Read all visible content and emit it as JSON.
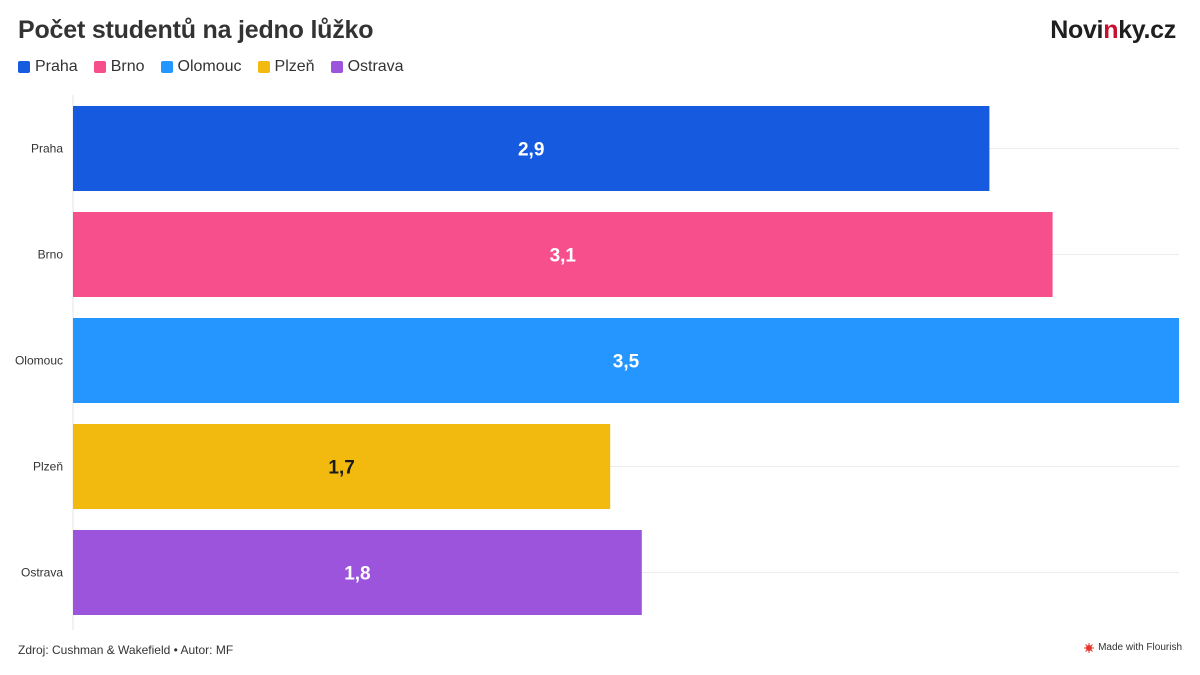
{
  "header": {
    "title": "Počet studentů na jedno lůžko",
    "logo_part1": "Novi",
    "logo_part2": "n",
    "logo_part3": "ky.cz"
  },
  "footer": {
    "source": "Zdroj: Cushman & Wakefield • Autor: MF",
    "made_with": "Made with Flourish"
  },
  "chart_data": {
    "type": "bar",
    "orientation": "horizontal",
    "title": "Počet studentů na jedno lůžko",
    "categories": [
      "Praha",
      "Brno",
      "Olomouc",
      "Plzeň",
      "Ostrava"
    ],
    "values": [
      2.9,
      3.1,
      3.5,
      1.7,
      1.8
    ],
    "value_labels": [
      "2,9",
      "3,1",
      "3,5",
      "1,7",
      "1,8"
    ],
    "colors": [
      "#165bdf",
      "#f74f8c",
      "#2596ff",
      "#f2b90f",
      "#9b54db"
    ],
    "label_colors": [
      "#ffffff",
      "#ffffff",
      "#ffffff",
      "#1a1a1a",
      "#ffffff"
    ],
    "legend": [
      {
        "name": "Praha",
        "color": "#165bdf"
      },
      {
        "name": "Brno",
        "color": "#f74f8c"
      },
      {
        "name": "Olomouc",
        "color": "#2596ff"
      },
      {
        "name": "Plzeň",
        "color": "#f2b90f"
      },
      {
        "name": "Ostrava",
        "color": "#9b54db"
      }
    ],
    "legend_position": "top-left",
    "xlim": [
      0,
      3.5
    ],
    "xlabel": "",
    "ylabel": "",
    "grid": true
  }
}
